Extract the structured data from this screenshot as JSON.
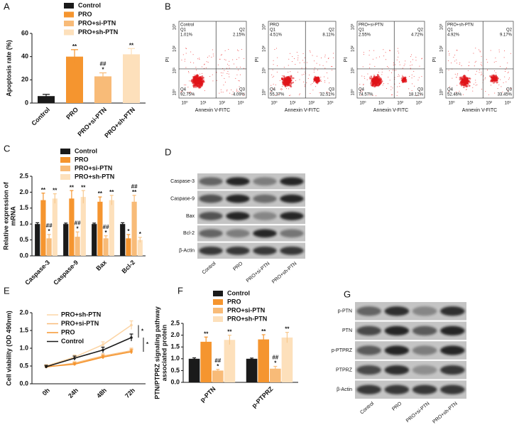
{
  "chart_data": [
    {
      "type": "bar",
      "panel_label": "A",
      "ylabel": "Apoptosis rate (%)",
      "categories": [
        "Control",
        "PRO",
        "PRO+si-PTN",
        "PRO+sh-PTN"
      ],
      "values": [
        6,
        40,
        23,
        42
      ],
      "errors": [
        1.5,
        6,
        3,
        5
      ],
      "colors": [
        "#1a1a1a",
        "#f5952f",
        "#f8bb78",
        "#fde0bb"
      ],
      "legend": [
        "Control",
        "PRO",
        "PRO+si-PTN",
        "PRO+sh-PTN"
      ],
      "annotations": [
        null,
        [
          "**"
        ],
        [
          "##",
          "*"
        ],
        [
          "**"
        ]
      ],
      "ylim": [
        0,
        60
      ],
      "yticks": [
        0,
        20,
        40,
        60
      ]
    },
    {
      "type": "grouped_bar",
      "panel_label": "C",
      "ylabel": [
        "Relative expression of",
        "mRNA"
      ],
      "categories": [
        "Caspase-3",
        "Caspase-9",
        "Bax",
        "Bcl-2"
      ],
      "series": [
        {
          "name": "Control",
          "color": "#1a1a1a",
          "values": [
            1,
            1,
            1,
            1
          ],
          "errors": [
            0.04,
            0.03,
            0.03,
            0.04
          ]
        },
        {
          "name": "PRO",
          "color": "#f5952f",
          "values": [
            1.75,
            1.8,
            1.7,
            0.55
          ],
          "errors": [
            0.22,
            0.25,
            0.15,
            0.12
          ],
          "annotations": [
            [
              "**"
            ],
            [
              "**"
            ],
            [
              "**"
            ],
            [
              "*"
            ]
          ]
        },
        {
          "name": "PRO+si-PTN",
          "color": "#f8bb78",
          "values": [
            0.55,
            0.6,
            0.55,
            1.7
          ],
          "errors": [
            0.12,
            0.15,
            0.08,
            0.2
          ],
          "annotations": [
            [
              "##",
              "*"
            ],
            [
              "##",
              "*"
            ],
            [
              "##",
              "*"
            ],
            [
              "##",
              "**"
            ]
          ]
        },
        {
          "name": "PRO+sh-PTN",
          "color": "#fde0bb",
          "values": [
            1.8,
            1.85,
            1.75,
            0.5
          ],
          "errors": [
            0.15,
            0.2,
            0.15,
            0.08
          ],
          "annotations": [
            [
              "**"
            ],
            [
              "**"
            ],
            [
              "**"
            ],
            [
              "*"
            ]
          ]
        }
      ],
      "ylim": [
        0,
        2.5
      ],
      "yticks": [
        {
          "value": 0,
          "label": "0.0"
        },
        0.5,
        {
          "value": 1,
          "label": "1.0"
        },
        1.5,
        {
          "value": 2,
          "label": "2.0"
        },
        2.5
      ]
    },
    {
      "type": "line",
      "panel_label": "E",
      "ylabel": "Cell viability (OD 490nm)",
      "categories": [
        "0h",
        "24h",
        "48h",
        "72h"
      ],
      "series": [
        {
          "name": "PRO+sh-PTN",
          "color": "#fcd5a6",
          "values": [
            0.5,
            0.75,
            1.1,
            1.65
          ],
          "errors": [
            0.04,
            0.06,
            0.08,
            0.12
          ]
        },
        {
          "name": "PRO+si-PTN",
          "color": "#f8bb78",
          "values": [
            0.47,
            0.58,
            0.78,
            0.93
          ],
          "errors": [
            0.03,
            0.04,
            0.06,
            0.07
          ]
        },
        {
          "name": "PRO",
          "color": "#f5952f",
          "values": [
            0.48,
            0.55,
            0.75,
            0.9
          ],
          "errors": [
            0.03,
            0.04,
            0.05,
            0.06
          ]
        },
        {
          "name": "Control",
          "color": "#1a1a1a",
          "values": [
            0.48,
            0.72,
            0.95,
            1.3
          ],
          "errors": [
            0.04,
            0.06,
            0.08,
            0.1
          ]
        }
      ],
      "annotations": [
        "*",
        "*"
      ],
      "ylim": [
        0,
        2
      ],
      "yticks": [
        {
          "value": 0,
          "label": "0.0"
        },
        0.5,
        {
          "value": 1,
          "label": "1.0"
        },
        1.5,
        {
          "value": 2,
          "label": "2.0"
        }
      ]
    },
    {
      "type": "grouped_bar",
      "panel_label": "F",
      "ylabel": [
        "PTN/PTPRZ signaling pathway",
        "associated protein"
      ],
      "categories": [
        "p-PTN",
        "p-PTPRZ"
      ],
      "series": [
        {
          "name": "Control",
          "color": "#1a1a1a",
          "values": [
            1,
            1
          ],
          "errors": [
            0.04,
            0.03
          ]
        },
        {
          "name": "PRO",
          "color": "#f5952f",
          "values": [
            1.72,
            1.82
          ],
          "errors": [
            0.2,
            0.2
          ],
          "annotations": [
            [
              "**"
            ],
            [
              "**"
            ]
          ]
        },
        {
          "name": "PRO+si-PTN",
          "color": "#f8bb78",
          "values": [
            0.5,
            0.58
          ],
          "errors": [
            0.05,
            0.1
          ],
          "annotations": [
            [
              "##",
              "*"
            ],
            [
              "##",
              "*"
            ]
          ]
        },
        {
          "name": "PRO+sh-PTN",
          "color": "#fde0bb",
          "values": [
            1.8,
            1.9
          ],
          "errors": [
            0.2,
            0.22
          ],
          "annotations": [
            [
              "**"
            ],
            [
              "**"
            ]
          ]
        }
      ],
      "ylim": [
        0,
        2.5
      ],
      "yticks": [
        {
          "value": 0,
          "label": "0.0"
        },
        0.5,
        {
          "value": 1,
          "label": "1.0"
        },
        1.5,
        {
          "value": 2,
          "label": "2.0"
        },
        2.5
      ]
    }
  ],
  "flow_cytometry": {
    "panel_label": "B",
    "y_axis_label": "PI",
    "x_axis_label": "Annexin V-FITC",
    "tick_labels": [
      "10⁰",
      "10¹",
      "10²",
      "10³"
    ],
    "plots": [
      {
        "title": "Control",
        "quadrants": [
          {
            "name": "Q1",
            "percent": "1.01%"
          },
          {
            "name": "Q2",
            "percent": "2.15%"
          },
          {
            "name": "Q3",
            "percent": "4.09%"
          },
          {
            "name": "Q4",
            "percent": "92.75%"
          }
        ]
      },
      {
        "title": "PRO",
        "quadrants": [
          {
            "name": "Q1",
            "percent": "4.51%"
          },
          {
            "name": "Q2",
            "percent": "8.11%"
          },
          {
            "name": "Q3",
            "percent": "32.51%"
          },
          {
            "name": "Q4",
            "percent": "55.37%"
          }
        ]
      },
      {
        "title": "PRO+si-PTN",
        "quadrants": [
          {
            "name": "Q1",
            "percent": "2.55%"
          },
          {
            "name": "Q2",
            "percent": "4.72%"
          },
          {
            "name": "Q3",
            "percent": "18.12%"
          },
          {
            "name": "Q4",
            "percent": "74.57%"
          }
        ]
      },
      {
        "title": "PRO+sh-PTN",
        "quadrants": [
          {
            "name": "Q1",
            "percent": "4.92%"
          },
          {
            "name": "Q2",
            "percent": "9.17%"
          },
          {
            "name": "Q3",
            "percent": "33.45%"
          },
          {
            "name": "Q4",
            "percent": "52.46%"
          }
        ]
      }
    ]
  },
  "blots": [
    {
      "panel_label": "D",
      "rows": [
        "Caspase-3",
        "Caspase-9",
        "Bax",
        "Bcl-2",
        "β-Actin"
      ],
      "lanes": [
        "Control",
        "PRO",
        "PRO+si-PTN",
        "PRO+sh-PTN"
      ]
    },
    {
      "panel_label": "G",
      "rows": [
        "p-PTN",
        "PTN",
        "p-PTPRZ",
        "PTPRZ",
        "β-Actin"
      ],
      "lanes": [
        "Control",
        "PRO",
        "PRO+si-PTN",
        "PRO+sh-PTN"
      ]
    }
  ]
}
